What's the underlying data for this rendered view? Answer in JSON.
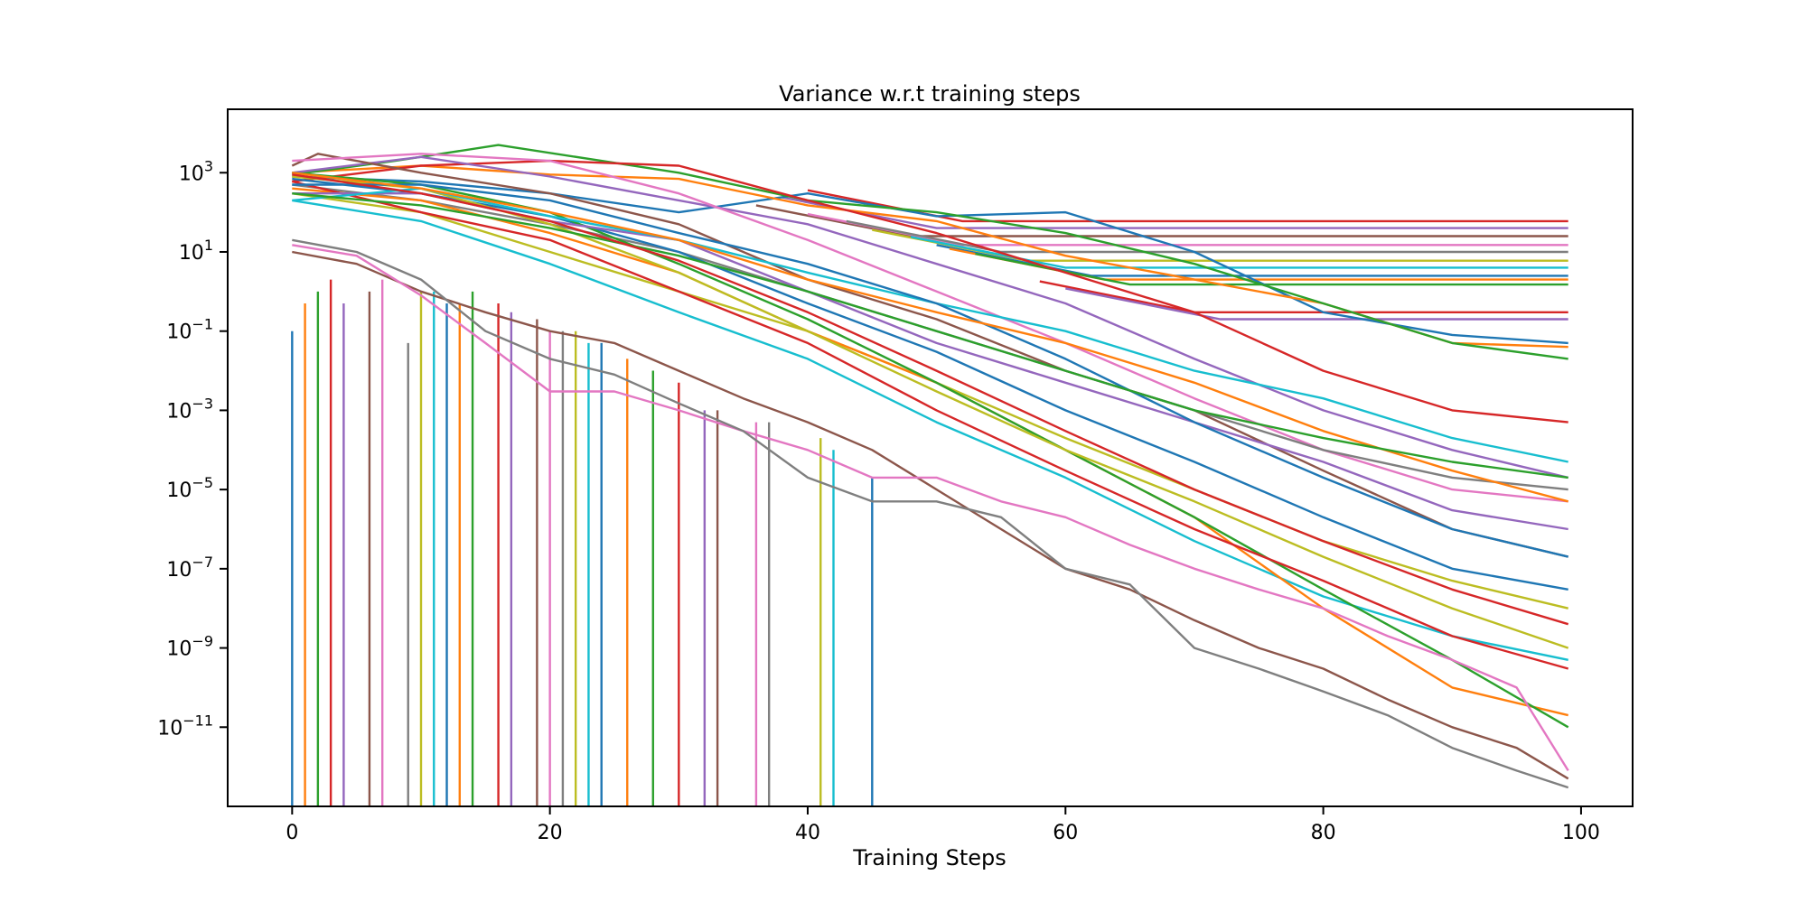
{
  "chart_data": {
    "type": "line",
    "title": "Variance w.r.t training steps",
    "xlabel": "Training Steps",
    "ylabel": "",
    "xlim": [
      -5,
      104
    ],
    "ylim": [
      1e-13,
      40000
    ],
    "yscale": "log",
    "grid": false,
    "legend": "none",
    "xticks": [
      0,
      20,
      40,
      60,
      80,
      100
    ],
    "xtick_labels": [
      "0",
      "20",
      "40",
      "60",
      "80",
      "100"
    ],
    "yticks": [
      1000.0,
      10.0,
      0.1,
      0.001,
      1e-05,
      1e-07,
      1e-09,
      1e-11
    ],
    "ytick_labels": [
      {
        "base": "10",
        "exp": "3"
      },
      {
        "base": "10",
        "exp": "1"
      },
      {
        "base": "10",
        "exp": "−1"
      },
      {
        "base": "10",
        "exp": "−3"
      },
      {
        "base": "10",
        "exp": "−5"
      },
      {
        "base": "10",
        "exp": "−7"
      },
      {
        "base": "10",
        "exp": "−9"
      },
      {
        "base": "10",
        "exp": "−11"
      }
    ],
    "colors": [
      "#1f77b4",
      "#ff7f0e",
      "#2ca02c",
      "#d62728",
      "#9467bd",
      "#8c564b",
      "#e377c2",
      "#7f7f7f",
      "#bcbd22",
      "#17becf"
    ],
    "series": [
      {
        "x": [
          0,
          10,
          20,
          30,
          40,
          50,
          60,
          70,
          80,
          90,
          99
        ],
        "y": [
          800,
          600,
          300,
          100,
          300,
          80,
          100,
          10,
          0.3,
          0.08,
          0.05
        ]
      },
      {
        "x": [
          0,
          10,
          20,
          30,
          40,
          50,
          60,
          70,
          80,
          90,
          99
        ],
        "y": [
          1000,
          1500,
          900,
          700,
          150,
          60,
          8,
          2,
          0.5,
          0.05,
          0.04
        ]
      },
      {
        "x": [
          0,
          8,
          16,
          24,
          30,
          40,
          50,
          60,
          70,
          80,
          90,
          99
        ],
        "y": [
          900,
          2000,
          5000,
          2000,
          1000,
          200,
          100,
          30,
          5,
          0.5,
          0.05,
          0.02
        ]
      },
      {
        "x": [
          0,
          10,
          20,
          30,
          40,
          50,
          60,
          70,
          80,
          90,
          99
        ],
        "y": [
          600,
          1500,
          2000,
          1500,
          200,
          30,
          3,
          0.3,
          0.01,
          0.001,
          0.0005
        ]
      },
      {
        "x": [
          0,
          10,
          20,
          30,
          40,
          50,
          60,
          70,
          80,
          90,
          99
        ],
        "y": [
          1000,
          2500,
          800,
          200,
          50,
          5,
          0.5,
          0.02,
          0.001,
          0.0001,
          2e-05
        ]
      },
      {
        "x": [
          0,
          2,
          10,
          20,
          30,
          40,
          50,
          60,
          70,
          80,
          90,
          99
        ],
        "y": [
          1500,
          3000,
          1000,
          300,
          50,
          2,
          0.2,
          0.01,
          0.001,
          3e-05,
          1e-06,
          2e-07
        ]
      },
      {
        "x": [
          0,
          10,
          20,
          30,
          40,
          50,
          60,
          70,
          80,
          90,
          99
        ],
        "y": [
          2000,
          3000,
          2000,
          300,
          20,
          1,
          0.05,
          0.002,
          0.0001,
          1e-05,
          5e-06
        ]
      },
      {
        "x": [
          0,
          10,
          20,
          30,
          40,
          50,
          60,
          70,
          80,
          90,
          99
        ],
        "y": [
          500,
          200,
          50,
          10,
          1,
          0.1,
          0.01,
          0.001,
          0.0001,
          2e-05,
          1e-05
        ]
      },
      {
        "x": [
          0,
          10,
          20,
          30,
          40,
          50,
          60,
          70,
          80,
          90,
          99
        ],
        "y": [
          300,
          100,
          10,
          1,
          0.1,
          0.005,
          0.0002,
          1e-05,
          5e-07,
          5e-08,
          1e-08
        ]
      },
      {
        "x": [
          0,
          10,
          20,
          30,
          40,
          50,
          60,
          70,
          80,
          90,
          99
        ],
        "y": [
          200,
          60,
          5,
          0.3,
          0.02,
          0.0005,
          2e-05,
          5e-07,
          2e-08,
          2e-09,
          5e-10
        ]
      },
      {
        "x": [
          0,
          10,
          20,
          30,
          40,
          50,
          60,
          70,
          80,
          90,
          99
        ],
        "y": [
          700,
          300,
          80,
          10,
          0.5,
          0.03,
          0.001,
          5e-05,
          2e-06,
          1e-07,
          3e-08
        ]
      },
      {
        "x": [
          0,
          10,
          20,
          30,
          40,
          50,
          60,
          70,
          80,
          90,
          99
        ],
        "y": [
          400,
          200,
          30,
          3,
          0.1,
          0.005,
          0.0001,
          2e-06,
          1e-08,
          1e-10,
          2e-11
        ]
      },
      {
        "x": [
          0,
          10,
          20,
          30,
          40,
          50,
          60,
          70,
          80,
          90,
          99
        ],
        "y": [
          1000,
          500,
          100,
          5,
          0.2,
          0.005,
          0.0001,
          2e-06,
          3e-08,
          5e-10,
          1e-11
        ]
      },
      {
        "x": [
          0,
          10,
          20,
          30,
          40,
          50,
          60,
          70,
          80,
          90,
          99
        ],
        "y": [
          600,
          100,
          20,
          1,
          0.05,
          0.001,
          3e-05,
          1e-06,
          5e-08,
          2e-09,
          3e-10
        ]
      },
      {
        "x": [
          0,
          10,
          20,
          30,
          40,
          50,
          60,
          70,
          80,
          90,
          99
        ],
        "y": [
          300,
          300,
          60,
          20,
          1,
          0.05,
          0.005,
          0.0005,
          5e-05,
          3e-06,
          1e-06
        ]
      },
      {
        "x": [
          0,
          5,
          10,
          15,
          20,
          25,
          30,
          35,
          40,
          45,
          50,
          55,
          60,
          65,
          70,
          75,
          80,
          85,
          90,
          95,
          99
        ],
        "y": [
          10,
          5,
          1,
          0.3,
          0.1,
          0.05,
          0.01,
          0.002,
          0.0005,
          0.0001,
          1e-05,
          1e-06,
          1e-07,
          3e-08,
          5e-09,
          1e-09,
          3e-10,
          5e-11,
          1e-11,
          3e-12,
          5e-13
        ]
      },
      {
        "x": [
          0,
          5,
          10,
          15,
          20,
          25,
          30,
          35,
          40,
          45,
          50,
          55,
          60,
          65,
          70,
          75,
          80,
          85,
          90,
          95,
          99
        ],
        "y": [
          15,
          8,
          0.8,
          0.05,
          0.003,
          0.003,
          0.001,
          0.0003,
          0.0001,
          2e-05,
          2e-05,
          5e-06,
          2e-06,
          4e-07,
          1e-07,
          3e-08,
          1e-08,
          2e-09,
          5e-10,
          1e-10,
          8e-13
        ]
      },
      {
        "x": [
          0,
          5,
          10,
          15,
          20,
          25,
          30,
          35,
          40,
          45,
          50,
          55,
          60,
          65,
          70,
          75,
          80,
          85,
          90,
          95,
          99
        ],
        "y": [
          20,
          10,
          2,
          0.1,
          0.02,
          0.008,
          0.0015,
          0.0003,
          2e-05,
          5e-06,
          5e-06,
          2e-06,
          1e-07,
          4e-08,
          1e-09,
          3e-10,
          8e-11,
          2e-11,
          3e-12,
          8e-13,
          3e-13
        ]
      },
      {
        "x": [
          0,
          10,
          20,
          30,
          40,
          50,
          60,
          70,
          80,
          90,
          99
        ],
        "y": [
          800,
          400,
          50,
          3,
          0.1,
          0.003,
          0.0001,
          5e-06,
          2e-07,
          1e-08,
          1e-09
        ]
      },
      {
        "x": [
          0,
          10,
          20,
          30,
          40,
          50,
          60,
          70,
          80,
          90,
          99
        ],
        "y": [
          200,
          400,
          80,
          20,
          3,
          0.5,
          0.1,
          0.01,
          0.002,
          0.0002,
          5e-05
        ]
      },
      {
        "x": [
          0,
          10,
          20,
          30,
          40,
          50,
          60,
          70,
          80,
          90,
          99
        ],
        "y": [
          500,
          500,
          200,
          30,
          5,
          0.5,
          0.02,
          0.0005,
          2e-05,
          1e-06,
          2e-07
        ]
      },
      {
        "x": [
          0,
          10,
          20,
          30,
          40,
          50,
          60,
          70,
          80,
          90,
          99
        ],
        "y": [
          1000,
          400,
          100,
          20,
          2,
          0.3,
          0.05,
          0.005,
          0.0003,
          3e-05,
          5e-06
        ]
      },
      {
        "x": [
          0,
          10,
          20,
          30,
          40,
          50,
          60,
          70,
          80,
          90,
          99
        ],
        "y": [
          300,
          150,
          40,
          8,
          1,
          0.1,
          0.01,
          0.001,
          0.0002,
          5e-05,
          2e-05
        ]
      },
      {
        "x": [
          0,
          10,
          20,
          30,
          40,
          50,
          60,
          70,
          80,
          90,
          99
        ],
        "y": [
          900,
          300,
          60,
          6,
          0.3,
          0.01,
          0.0003,
          1e-05,
          5e-07,
          3e-08,
          4e-09
        ]
      }
    ],
    "plateaus": [
      {
        "x_end": 52,
        "y": 60
      },
      {
        "x_end": 50,
        "y": 40
      },
      {
        "x_end": 48,
        "y": 25
      },
      {
        "x_end": 52,
        "y": 15
      },
      {
        "x_end": 55,
        "y": 10
      },
      {
        "x_end": 57,
        "y": 6
      },
      {
        "x_end": 60,
        "y": 4
      },
      {
        "x_end": 62,
        "y": 2.5
      },
      {
        "x_end": 63,
        "y": 2
      },
      {
        "x_end": 65,
        "y": 1.5
      },
      {
        "x_end": 70,
        "y": 0.3
      },
      {
        "x_end": 72,
        "y": 0.2
      }
    ],
    "drops": [
      {
        "x": 0,
        "y": 0.1
      },
      {
        "x": 1,
        "y": 0.5
      },
      {
        "x": 2,
        "y": 1
      },
      {
        "x": 3,
        "y": 2
      },
      {
        "x": 4,
        "y": 0.5
      },
      {
        "x": 6,
        "y": 1
      },
      {
        "x": 7,
        "y": 2
      },
      {
        "x": 9,
        "y": 0.05
      },
      {
        "x": 10,
        "y": 1
      },
      {
        "x": 11,
        "y": 1
      },
      {
        "x": 12,
        "y": 0.5
      },
      {
        "x": 13,
        "y": 0.5
      },
      {
        "x": 14,
        "y": 1
      },
      {
        "x": 16,
        "y": 0.5
      },
      {
        "x": 17,
        "y": 0.3
      },
      {
        "x": 19,
        "y": 0.2
      },
      {
        "x": 20,
        "y": 0.1
      },
      {
        "x": 21,
        "y": 0.1
      },
      {
        "x": 22,
        "y": 0.1
      },
      {
        "x": 23,
        "y": 0.05
      },
      {
        "x": 24,
        "y": 0.05
      },
      {
        "x": 26,
        "y": 0.02
      },
      {
        "x": 28,
        "y": 0.01
      },
      {
        "x": 30,
        "y": 0.005
      },
      {
        "x": 32,
        "y": 0.001
      },
      {
        "x": 33,
        "y": 0.001
      },
      {
        "x": 36,
        "y": 0.0005
      },
      {
        "x": 37,
        "y": 0.0005
      },
      {
        "x": 41,
        "y": 0.0002
      },
      {
        "x": 42,
        "y": 0.0001
      },
      {
        "x": 45,
        "y": 2e-05
      }
    ]
  }
}
